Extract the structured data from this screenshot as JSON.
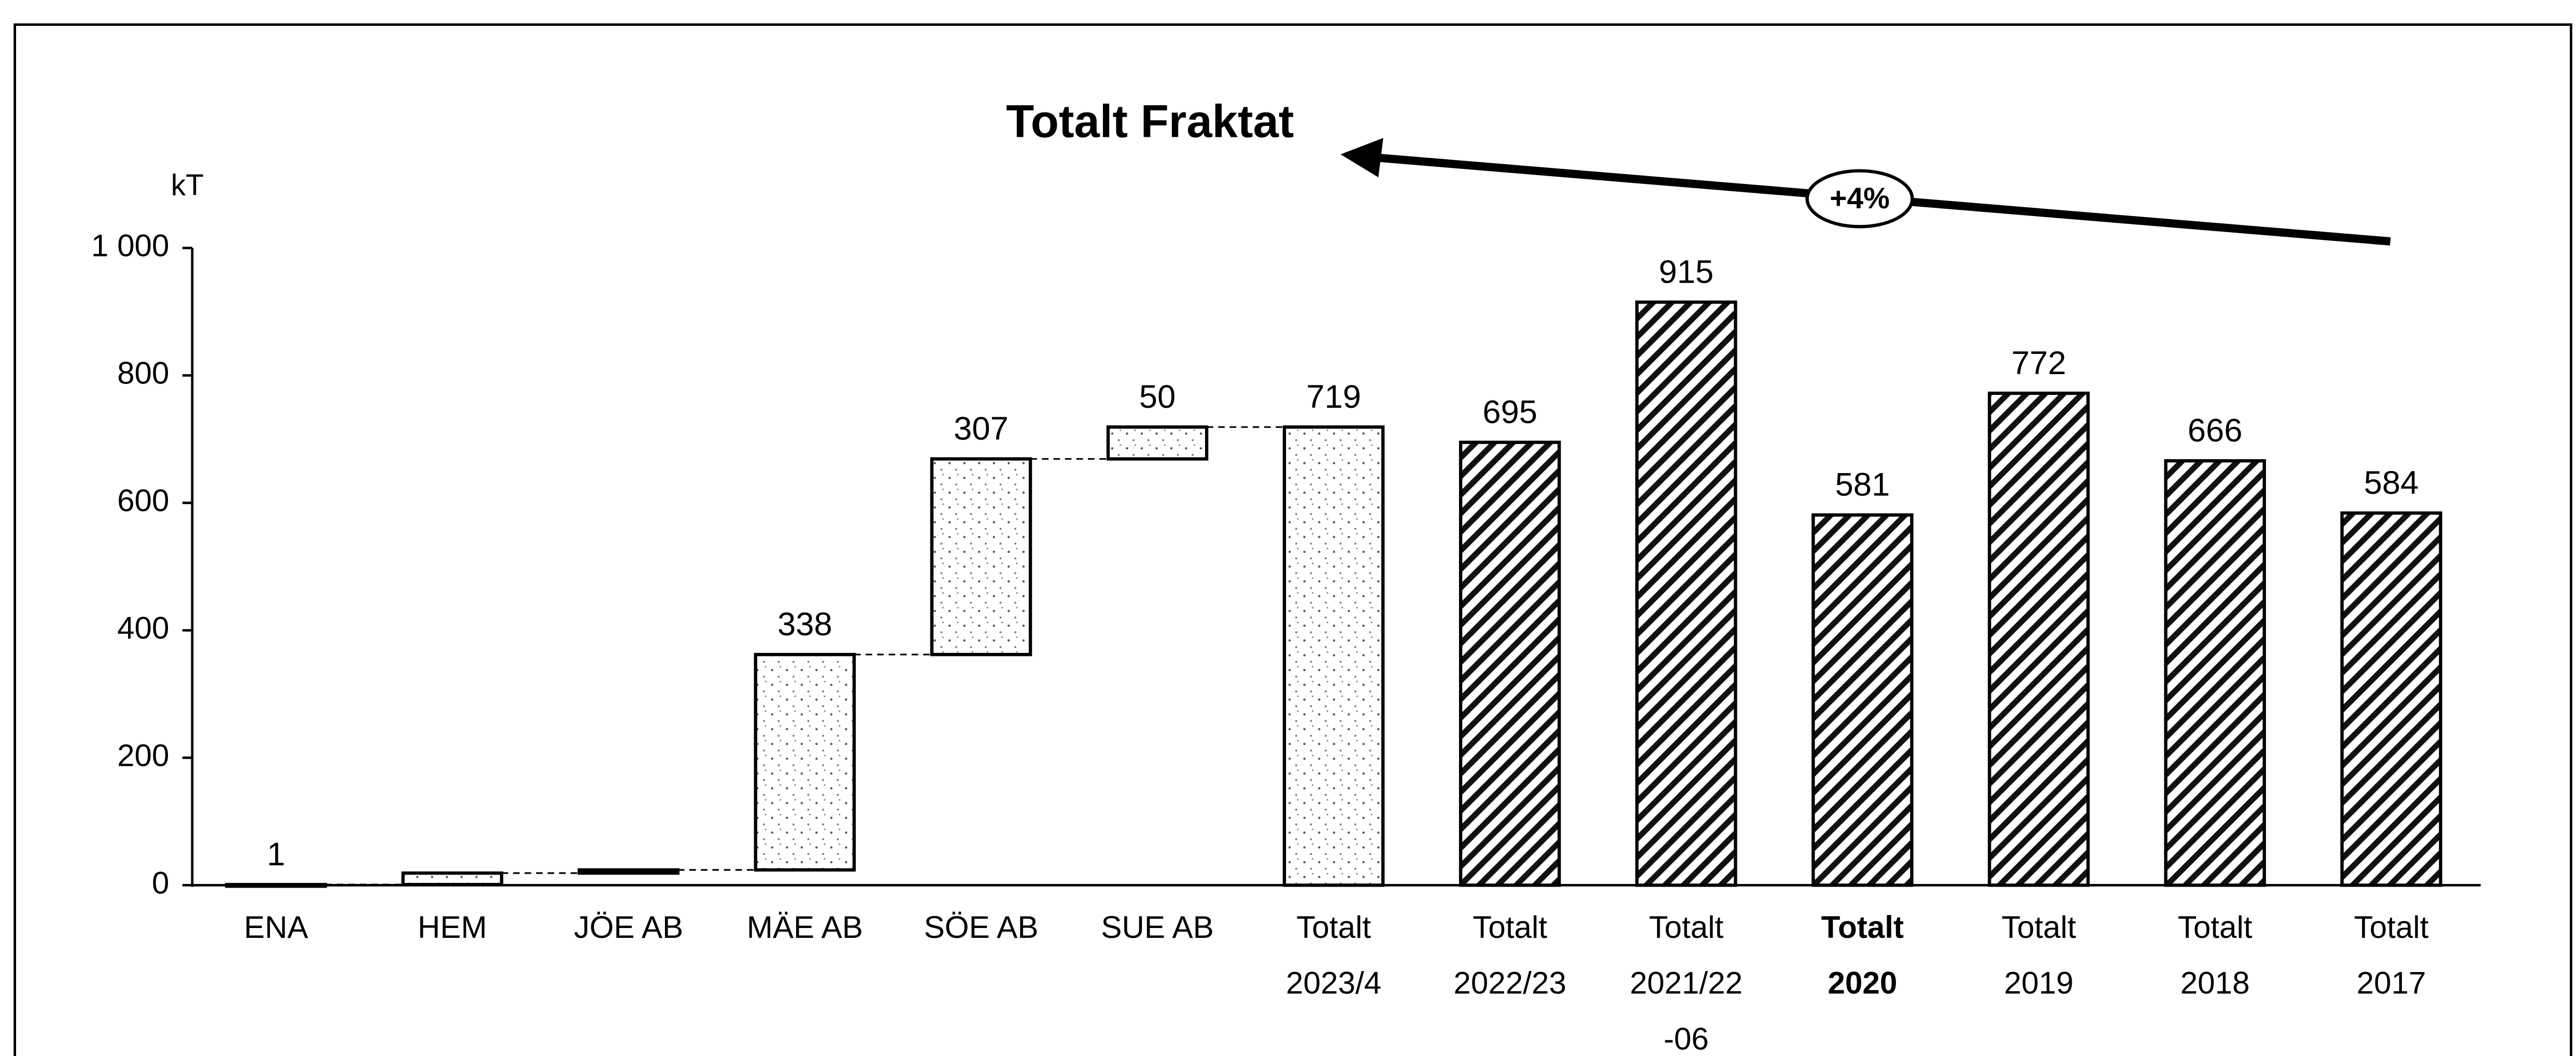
{
  "chart_data": {
    "type": "waterfall",
    "title": "Totalt Fraktat",
    "y_label": "kT",
    "categories": [
      [
        "ENA"
      ],
      [
        "HEM"
      ],
      [
        "JÖE AB"
      ],
      [
        "MÄE AB"
      ],
      [
        "SÖE AB"
      ],
      [
        "SUE AB"
      ],
      [
        "Totalt",
        "2023/4"
      ],
      [
        "Totalt",
        "2022/23"
      ],
      [
        "Totalt",
        "2021/22",
        "-06"
      ],
      [
        "Totalt",
        "2020"
      ],
      [
        "Totalt",
        "2019"
      ],
      [
        "Totalt",
        "2018"
      ],
      [
        "Totalt",
        "2017"
      ]
    ],
    "values": [
      1,
      18,
      5,
      338,
      307,
      50,
      719,
      695,
      915,
      581,
      772,
      666,
      584
    ],
    "value_labels": [
      1,
      null,
      null,
      338,
      307,
      50,
      719,
      695,
      915,
      581,
      772,
      666,
      584
    ],
    "measure": [
      "delta",
      "delta",
      "delta",
      "delta",
      "delta",
      "delta",
      "total",
      "total",
      "total",
      "total",
      "total",
      "total",
      "total"
    ],
    "fill": [
      "stipple",
      "stipple",
      "stipple",
      "stipple",
      "stipple",
      "stipple",
      "stipple",
      "hatch",
      "hatch",
      "hatch",
      "hatch",
      "hatch",
      "hatch"
    ],
    "bold_categories": [
      9
    ],
    "annotation": "+4%",
    "ylim": [
      0,
      1000
    ],
    "yticks": [
      0,
      200,
      400,
      600,
      800,
      {
        "value": 1000,
        "label": "1 000"
      }
    ]
  }
}
